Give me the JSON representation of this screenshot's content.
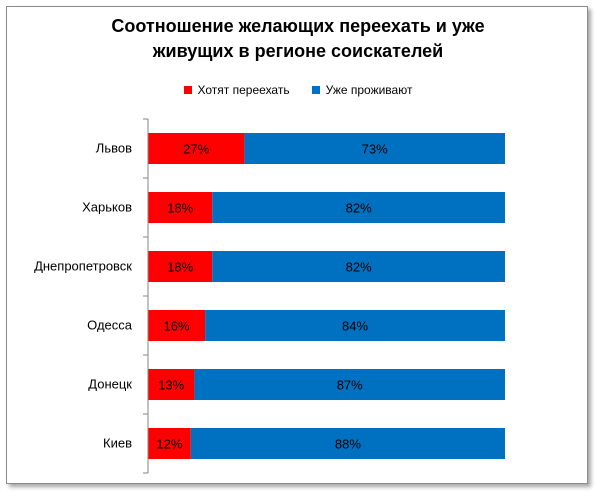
{
  "chart_data": {
    "type": "bar",
    "orientation": "horizontal",
    "stacked": "percent",
    "title_lines": [
      "Соотношение желающих переехать и уже",
      "живущих в регионе соискателей"
    ],
    "categories": [
      "Львов",
      "Харьков",
      "Днепропетровск",
      "Одесса",
      "Донецк",
      "Киев"
    ],
    "series": [
      {
        "name": "Хотят переехать",
        "color": "#ff0000",
        "values": [
          27,
          18,
          18,
          16,
          13,
          12
        ],
        "labels": [
          "27%",
          "18%",
          "18%",
          "16%",
          "13%",
          "12%"
        ]
      },
      {
        "name": "Уже проживают",
        "color": "#0070c0",
        "values": [
          73,
          82,
          82,
          84,
          87,
          88
        ],
        "labels": [
          "73%",
          "82%",
          "82%",
          "84%",
          "87%",
          "88%"
        ]
      }
    ],
    "xlim": [
      0,
      100
    ],
    "legend_position": "top",
    "grid": false
  }
}
